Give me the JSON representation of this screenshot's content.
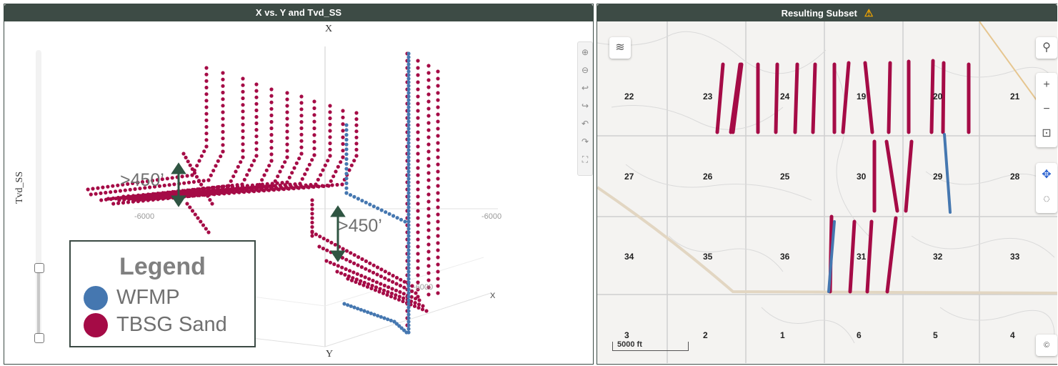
{
  "left_panel": {
    "title": "X vs. Y and Tvd_SS",
    "axis_x_top": "X",
    "axis_y_bottom": "Y",
    "axis_z": "Tvd_SS",
    "axis_x_right": "X",
    "tick_left": "-6000",
    "tick_right": "-6000",
    "tick_bottom": "-6000",
    "annotation_1": ">450’",
    "annotation_2": ">450’",
    "legend": {
      "title": "Legend",
      "items": [
        {
          "label": "WFMP",
          "color": "#4577b0"
        },
        {
          "label": "TBSG Sand",
          "color": "#a50b46"
        }
      ]
    },
    "tools": [
      "zoom-in-icon",
      "zoom-out-icon",
      "rotate-left-icon",
      "rotate-right-icon",
      "rotate-up-icon",
      "rotate-down-icon",
      "reset-view-icon"
    ]
  },
  "right_panel": {
    "title": "Resulting Subset",
    "warning_icon": "warning-icon",
    "scale_label": "5000 ft",
    "sections": [
      "22",
      "23",
      "24",
      "19",
      "20",
      "21",
      "27",
      "26",
      "25",
      "30",
      "29",
      "28",
      "34",
      "35",
      "36",
      "31",
      "32",
      "33",
      "3",
      "2",
      "1",
      "6",
      "5",
      "4"
    ],
    "controls": {
      "layers": "layers-icon",
      "search": "search-icon",
      "zoom_in": "+",
      "zoom_out": "−",
      "locate": "locate-icon",
      "pan": "pan-icon",
      "lasso": "lasso-icon",
      "attribution": "©"
    }
  }
}
